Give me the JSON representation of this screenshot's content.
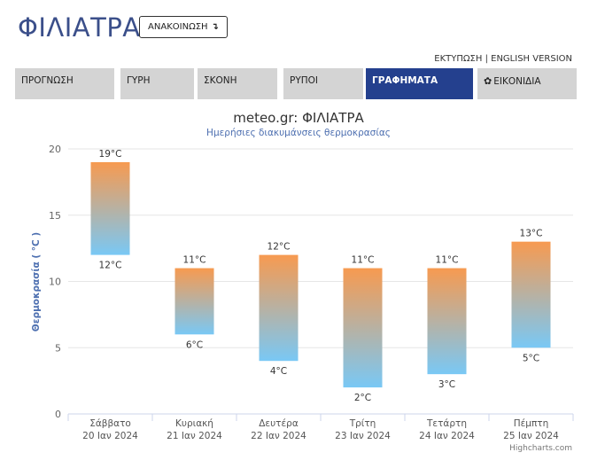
{
  "header": {
    "city": "ΦΙΛΙΑΤΡΑ",
    "announce_label": "ΑΝΑΚΟΙΝΩΣΗ",
    "announce_icon": "arrow-down-icon",
    "print_label": "ΕΚΤΥΠΩΣΗ",
    "separator": "|",
    "english_label": "ENGLISH VERSION"
  },
  "tabs": [
    {
      "label": "ΠΡΟΓΝΩΣΗ",
      "active": false
    },
    {
      "label": "ΓΥΡΗ",
      "active": false
    },
    {
      "label": "ΣΚΟΝΗ",
      "active": false
    },
    {
      "label": "ΡΥΠΟΙ",
      "active": false
    },
    {
      "label": "ΓΡΑΦΗΜΑΤΑ",
      "active": true
    },
    {
      "label": "ΕΙΚΟΝΙΔΙΑ",
      "active": false,
      "icon": "gear-icon"
    }
  ],
  "colors": {
    "accent": "#24408e",
    "title": "#3b4f8a",
    "bar_top": "#f79a50",
    "bar_bottom": "#79c8f5",
    "axis_title": "#4d6fb0"
  },
  "chart_data": {
    "type": "bar",
    "subtype": "columnrange",
    "title": "meteo.gr: ΦΙΛΙΑΤΡΑ",
    "subtitle": "Ημερήσιες διακυμάνσεις θερμοκρασίας",
    "ylabel": "Θερμοκρασία ( °C )",
    "ylim": [
      0,
      20
    ],
    "yticks": [
      0,
      5,
      10,
      15,
      20
    ],
    "grid": true,
    "unit": "°C",
    "categories": [
      [
        "Σάββατο",
        "20 Ιαν 2024"
      ],
      [
        "Κυριακή",
        "21 Ιαν 2024"
      ],
      [
        "Δευτέρα",
        "22 Ιαν 2024"
      ],
      [
        "Τρίτη",
        "23 Ιαν 2024"
      ],
      [
        "Τετάρτη",
        "24 Ιαν 2024"
      ],
      [
        "Πέμπτη",
        "25 Ιαν 2024"
      ]
    ],
    "low": [
      12,
      6,
      4,
      2,
      3,
      5
    ],
    "high": [
      19,
      11,
      12,
      11,
      11,
      13
    ],
    "credits": "Highcharts.com"
  }
}
